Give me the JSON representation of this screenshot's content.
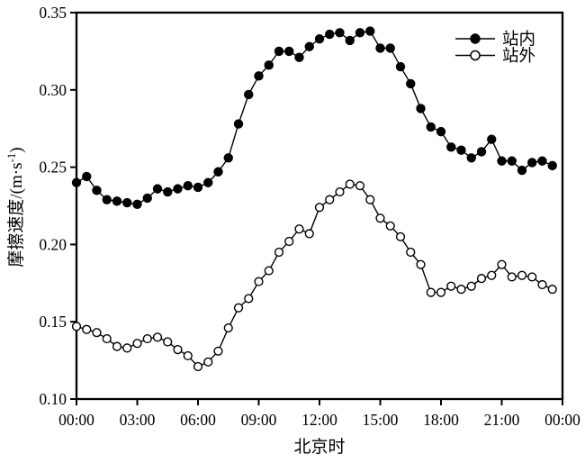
{
  "chart_data": {
    "type": "line",
    "title": "",
    "xlabel": "北京时",
    "ylabel": "摩擦速度/(m·s⁻¹)",
    "ylabel_parts": {
      "prefix": "摩擦速度/(m·s",
      "superscript": "-1",
      "suffix": ")"
    },
    "axis_color": "#000000",
    "background_color": "#ffffff",
    "grid": false,
    "xlim_hours": [
      0,
      24
    ],
    "ylim": [
      0.1,
      0.35
    ],
    "y_ticks": [
      0.1,
      0.15,
      0.2,
      0.25,
      0.3,
      0.35
    ],
    "y_tick_labels": [
      "0.10",
      "0.15",
      "0.20",
      "0.25",
      "0.30",
      "0.35"
    ],
    "x_tick_hours": [
      0,
      3,
      6,
      9,
      12,
      15,
      18,
      21,
      24
    ],
    "x_tick_labels": [
      "00:00",
      "03:00",
      "06:00",
      "09:00",
      "12:00",
      "15:00",
      "18:00",
      "21:00",
      "00:00"
    ],
    "x_hours": [
      0,
      0.5,
      1,
      1.5,
      2,
      2.5,
      3,
      3.5,
      4,
      4.5,
      5,
      5.5,
      6,
      6.5,
      7,
      7.5,
      8,
      8.5,
      9,
      9.5,
      10,
      10.5,
      11,
      11.5,
      12,
      12.5,
      13,
      13.5,
      14,
      14.5,
      15,
      15.5,
      16,
      16.5,
      17,
      17.5,
      18,
      18.5,
      19,
      19.5,
      20,
      20.5,
      21,
      21.5,
      22,
      22.5,
      23,
      23.5
    ],
    "series": [
      {
        "name": "站内",
        "marker": "filled-circle",
        "color": "#000000",
        "values": [
          0.24,
          0.244,
          0.235,
          0.229,
          0.228,
          0.227,
          0.226,
          0.23,
          0.236,
          0.234,
          0.236,
          0.238,
          0.237,
          0.24,
          0.247,
          0.256,
          0.278,
          0.297,
          0.309,
          0.316,
          0.325,
          0.325,
          0.321,
          0.328,
          0.333,
          0.336,
          0.337,
          0.332,
          0.337,
          0.338,
          0.327,
          0.327,
          0.315,
          0.304,
          0.288,
          0.276,
          0.273,
          0.263,
          0.261,
          0.256,
          0.26,
          0.268,
          0.254,
          0.254,
          0.248,
          0.253,
          0.254,
          0.251
        ]
      },
      {
        "name": "站外",
        "marker": "open-circle",
        "color": "#000000",
        "values": [
          0.147,
          0.145,
          0.143,
          0.139,
          0.134,
          0.133,
          0.136,
          0.139,
          0.14,
          0.137,
          0.132,
          0.128,
          0.121,
          0.124,
          0.131,
          0.146,
          0.159,
          0.165,
          0.176,
          0.183,
          0.195,
          0.202,
          0.21,
          0.207,
          0.224,
          0.229,
          0.234,
          0.239,
          0.238,
          0.229,
          0.217,
          0.212,
          0.205,
          0.195,
          0.187,
          0.169,
          0.169,
          0.173,
          0.171,
          0.173,
          0.178,
          0.18,
          0.187,
          0.179,
          0.18,
          0.179,
          0.174,
          0.171
        ]
      }
    ],
    "legend": {
      "position": "top-right",
      "entries": [
        "站内",
        "站外"
      ]
    }
  }
}
